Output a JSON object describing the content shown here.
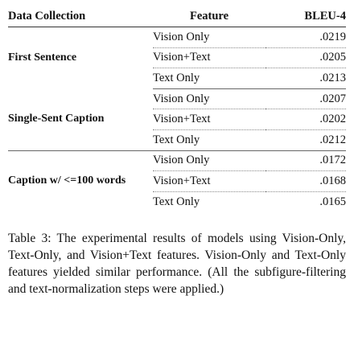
{
  "table": {
    "headers": {
      "group": "Data Collection",
      "feature": "Feature",
      "score": "BLEU-4"
    },
    "groups": [
      {
        "name": "First Sentence",
        "rows": [
          {
            "feature": "Vision Only",
            "score": ".0219"
          },
          {
            "feature": "Vision+Text",
            "score": ".0205"
          },
          {
            "feature": "Text Only",
            "score": ".0213"
          }
        ]
      },
      {
        "name": "Single-Sent Caption",
        "rows": [
          {
            "feature": "Vision Only",
            "score": ".0207"
          },
          {
            "feature": "Vision+Text",
            "score": ".0202"
          },
          {
            "feature": "Text Only",
            "score": ".0212"
          }
        ]
      },
      {
        "name": "Caption w/ <=100 words",
        "rows": [
          {
            "feature": "Vision Only",
            "score": ".0172"
          },
          {
            "feature": "Vision+Text",
            "score": ".0168"
          },
          {
            "feature": "Text Only",
            "score": ".0165"
          }
        ]
      }
    ]
  },
  "caption": {
    "text": "Table 3: The experimental results of models using Vision-Only, Text-Only, and Vision+Text features. Vision-Only and Text-Only features yielded similar performance. (All the subfigure-filtering and text-normalization steps were applied.)"
  }
}
